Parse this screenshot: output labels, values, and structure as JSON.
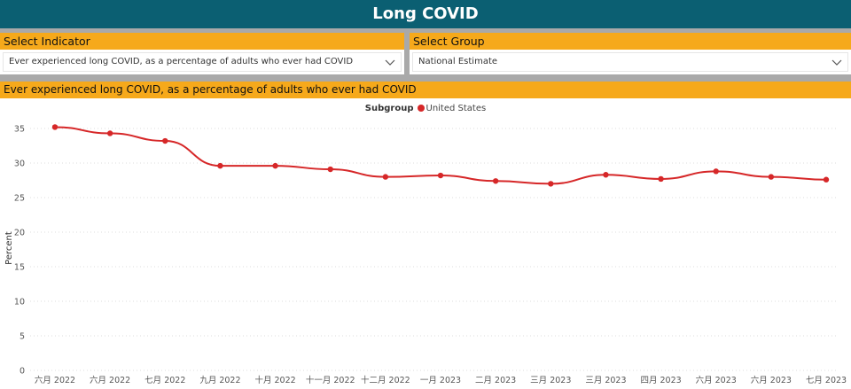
{
  "header": {
    "title": "Long COVID"
  },
  "indicator_slicer": {
    "title": "Select Indicator",
    "value": "Ever experienced long COVID, as a percentage of adults who ever had COVID"
  },
  "group_slicer": {
    "title": "Select Group",
    "value": "National Estimate"
  },
  "chart_title": "Ever experienced long COVID, as a percentage of adults who ever had COVID",
  "icons": {
    "dropdown": "chevron-down-icon"
  },
  "colors": {
    "header": "#0b5f72",
    "accent": "#f6a91b",
    "separator": "#a9a9a9",
    "series": "#d62728"
  },
  "chart_data": {
    "type": "line",
    "title": "",
    "ylabel": "Percent",
    "xlabel": "",
    "legend_title": "Subgroup",
    "legend_position": "top-center",
    "ylim": [
      0,
      35
    ],
    "yticks": [
      0,
      5,
      10,
      15,
      20,
      25,
      30,
      35
    ],
    "grid": true,
    "categories": [
      "六月 2022",
      "六月 2022",
      "七月 2022",
      "九月 2022",
      "十月 2022",
      "十一月 2022",
      "十二月 2022",
      "一月 2023",
      "二月 2023",
      "三月 2023",
      "三月 2023",
      "四月 2023",
      "六月 2023",
      "六月 2023",
      "七月 2023"
    ],
    "series": [
      {
        "name": "United States",
        "color": "#d62728",
        "values": [
          35.2,
          34.3,
          33.2,
          29.6,
          29.6,
          29.1,
          28.0,
          28.2,
          27.4,
          27.0,
          28.3,
          27.7,
          28.8,
          28.0,
          27.6
        ]
      }
    ]
  }
}
